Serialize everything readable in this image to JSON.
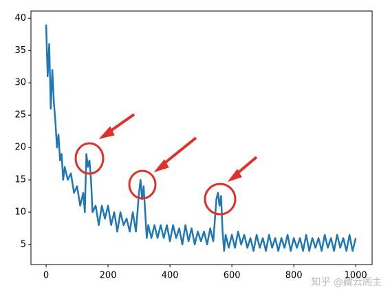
{
  "chart_data": {
    "type": "line",
    "x": [
      0,
      5,
      10,
      15,
      20,
      25,
      30,
      35,
      40,
      45,
      50,
      55,
      60,
      70,
      80,
      90,
      100,
      110,
      120,
      125,
      130,
      135,
      140,
      145,
      150,
      160,
      170,
      180,
      190,
      200,
      210,
      220,
      230,
      240,
      250,
      260,
      270,
      280,
      290,
      300,
      305,
      310,
      315,
      320,
      325,
      330,
      340,
      350,
      360,
      370,
      380,
      390,
      400,
      410,
      420,
      430,
      440,
      450,
      460,
      470,
      480,
      490,
      500,
      510,
      520,
      530,
      540,
      550,
      555,
      560,
      565,
      570,
      575,
      580,
      590,
      600,
      610,
      620,
      630,
      640,
      650,
      660,
      670,
      680,
      690,
      700,
      710,
      720,
      730,
      740,
      750,
      760,
      770,
      780,
      790,
      800,
      810,
      820,
      830,
      840,
      850,
      860,
      870,
      880,
      890,
      900,
      910,
      920,
      930,
      940,
      950,
      960,
      970,
      980,
      990,
      1000
    ],
    "series": [
      {
        "color": "#1f77b4",
        "values": [
          39,
          31,
          36,
          26,
          32,
          27,
          24,
          20,
          22,
          18,
          19,
          15,
          17,
          15,
          16,
          13,
          14,
          11,
          13,
          10,
          19,
          17,
          18,
          15,
          10,
          11,
          8,
          11,
          9,
          11,
          8,
          10,
          7,
          10,
          8,
          9,
          7,
          10,
          7,
          13,
          15,
          12,
          14,
          10,
          6,
          8,
          6,
          8,
          6,
          8,
          6,
          8,
          5.5,
          8,
          6,
          7.5,
          5,
          8,
          5.5,
          7.5,
          5,
          7,
          5.5,
          7,
          5,
          7.5,
          5.5,
          12,
          13,
          11,
          12.5,
          7,
          4,
          6.5,
          4.5,
          6.5,
          4.5,
          7,
          5,
          6.5,
          4.5,
          6,
          4,
          6.5,
          4.5,
          6,
          4,
          6.5,
          4.5,
          6,
          4,
          6,
          4.5,
          6.5,
          4,
          6,
          4.5,
          6,
          4,
          6.5,
          4,
          6,
          4.5,
          6,
          4,
          6.5,
          4.5,
          6,
          4,
          6.5,
          4.5,
          6,
          4,
          6.5,
          4,
          6
        ]
      }
    ],
    "xlim": [
      -49,
      1053
    ],
    "ylim": [
      1.9,
      41.1
    ],
    "xticks": [
      0,
      200,
      400,
      600,
      800,
      1000
    ],
    "yticks": [
      5,
      10,
      15,
      20,
      25,
      30,
      35,
      40
    ],
    "watermark": "知乎 @藏云阁主"
  }
}
